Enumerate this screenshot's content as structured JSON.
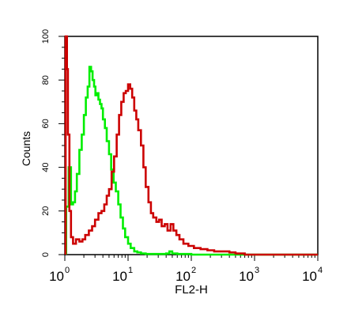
{
  "chart_data": {
    "type": "line",
    "xscale": "log",
    "xlim": [
      1,
      10000
    ],
    "ylim": [
      0,
      100
    ],
    "xlabel": "FL2-H",
    "ylabel": "Counts",
    "xticks": [
      {
        "value": 1,
        "base": "10",
        "exp": "0"
      },
      {
        "value": 10,
        "base": "10",
        "exp": "1"
      },
      {
        "value": 100,
        "base": "10",
        "exp": "2"
      },
      {
        "value": 1000,
        "base": "10",
        "exp": "3"
      },
      {
        "value": 10000,
        "base": "10",
        "exp": "4"
      }
    ],
    "yticks": [
      {
        "value": 0,
        "label": "0"
      },
      {
        "value": 20,
        "label": "20"
      },
      {
        "value": 40,
        "label": "40"
      },
      {
        "value": 60,
        "label": "60"
      },
      {
        "value": 80,
        "label": "80"
      },
      {
        "value": 100,
        "label": "100"
      }
    ],
    "grid": false,
    "series": [
      {
        "color": "#00ee00",
        "x": [
          1.05,
          1.15,
          1.25,
          1.35,
          1.45,
          1.55,
          1.7,
          1.85,
          2.0,
          2.15,
          2.3,
          2.45,
          2.6,
          2.75,
          2.9,
          3.05,
          3.2,
          3.4,
          3.6,
          3.8,
          4.0,
          4.3,
          4.6,
          5.0,
          5.4,
          5.9,
          6.4,
          7.0,
          7.6,
          8.3,
          9.0,
          10,
          11,
          12.5,
          14,
          16,
          19,
          23,
          30,
          40,
          45,
          50,
          60,
          100,
          200,
          500,
          10000
        ],
        "y": [
          22,
          40,
          23,
          24,
          29,
          37,
          48,
          55,
          64,
          72,
          77,
          86,
          84,
          80,
          77,
          73,
          74,
          71,
          69,
          67,
          62,
          58,
          52,
          46,
          39,
          33,
          29,
          23,
          17,
          12,
          8,
          5,
          3,
          1.5,
          1,
          0.5,
          0.3,
          0.3,
          0.3,
          0.5,
          1.5,
          0.5,
          0.3,
          0,
          0,
          0,
          0
        ]
      },
      {
        "color": "#cc0000",
        "x": [
          1.03,
          1.08,
          1.12,
          1.18,
          1.25,
          1.35,
          1.5,
          1.7,
          1.9,
          2.1,
          2.4,
          2.7,
          3.0,
          3.4,
          3.8,
          4.2,
          4.6,
          5.0,
          5.5,
          6.0,
          6.6,
          7.2,
          7.8,
          8.5,
          9.2,
          10,
          10.8,
          11.6,
          12.5,
          13.5,
          14.5,
          16,
          17.5,
          19,
          21,
          23,
          25,
          28,
          31,
          34,
          38,
          42,
          47,
          52,
          58,
          65,
          75,
          90,
          110,
          140,
          180,
          230,
          300,
          400,
          500,
          700,
          1000,
          10000
        ],
        "y": [
          100,
          85,
          55,
          20,
          8,
          5,
          7,
          6,
          7,
          9,
          11,
          13,
          16,
          19,
          20,
          23,
          27,
          30,
          38,
          45,
          55,
          64,
          70,
          74,
          75,
          78,
          76,
          72,
          66,
          62,
          57,
          50,
          40,
          31,
          24,
          19,
          17,
          15,
          16,
          13,
          14,
          11,
          14,
          11,
          9,
          7,
          5,
          4,
          3,
          2.5,
          2,
          1.5,
          1.5,
          1,
          0.5,
          0,
          0,
          0
        ]
      }
    ]
  }
}
